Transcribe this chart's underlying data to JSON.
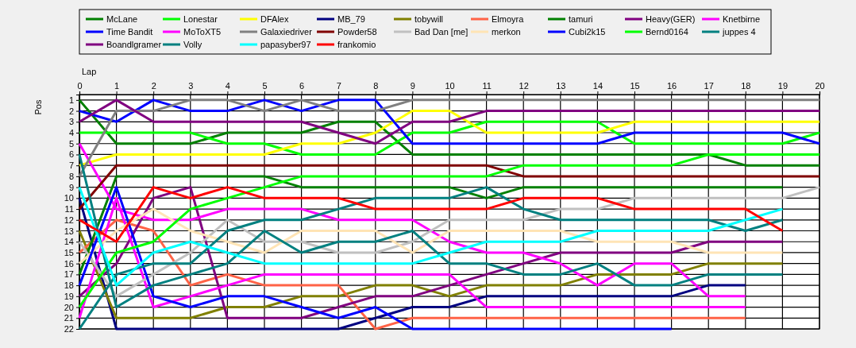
{
  "chart_data": {
    "type": "line",
    "xlabel": "Lap",
    "ylabel": "Pos",
    "x": [
      0,
      1,
      2,
      3,
      4,
      5,
      6,
      7,
      8,
      9,
      10,
      11,
      12,
      13,
      14,
      15,
      16,
      17,
      18,
      19,
      20
    ],
    "xlim": [
      0,
      20
    ],
    "xticks": [
      0,
      1,
      2,
      3,
      4,
      5,
      6,
      7,
      8,
      9,
      10,
      11,
      12,
      13,
      14,
      15,
      16,
      17,
      18,
      19,
      20
    ],
    "ylim": [
      22,
      0.5
    ],
    "yticks": [
      1,
      2,
      3,
      4,
      5,
      6,
      7,
      8,
      9,
      10,
      11,
      12,
      13,
      14,
      15,
      16,
      17,
      18,
      19,
      20,
      21,
      22
    ],
    "grid": true,
    "legend": "top",
    "series": [
      {
        "name": "McLane",
        "color": "#008000",
        "values": [
          1,
          5,
          5,
          5,
          4,
          4,
          4,
          3,
          3,
          6,
          6,
          6,
          6,
          6,
          6,
          6,
          6,
          6,
          7,
          7,
          7
        ]
      },
      {
        "name": "Lonestar",
        "color": "#00ff00",
        "values": [
          4,
          4,
          4,
          4,
          5,
          5,
          6,
          6,
          6,
          4,
          4,
          3,
          3,
          3,
          3,
          5,
          5,
          5,
          5,
          5,
          4
        ]
      },
      {
        "name": "DFAlex",
        "color": "#ffff00",
        "values": [
          7,
          6,
          6,
          6,
          6,
          6,
          5,
          5,
          4,
          2,
          2,
          4,
          4,
          4,
          4,
          3,
          3,
          3,
          3,
          3,
          3
        ]
      },
      {
        "name": "MB_79",
        "color": "#000080",
        "values": [
          10,
          22,
          22,
          22,
          22,
          22,
          22,
          22,
          21,
          20,
          20,
          19,
          19,
          19,
          19,
          19,
          19,
          18,
          18,
          null,
          null
        ]
      },
      {
        "name": "tobywill",
        "color": "#808000",
        "values": [
          13,
          21,
          21,
          21,
          20,
          20,
          19,
          19,
          18,
          18,
          19,
          18,
          18,
          18,
          17,
          17,
          17,
          16,
          16,
          16,
          null
        ]
      },
      {
        "name": "Elmoyra",
        "color": "#ff6347",
        "values": [
          15,
          12,
          13,
          18,
          17,
          18,
          18,
          18,
          22,
          21,
          21,
          21,
          21,
          21,
          21,
          21,
          21,
          21,
          21,
          null,
          null
        ]
      },
      {
        "name": "tamuri",
        "color": "#008000",
        "values": [
          17,
          8,
          8,
          8,
          8,
          8,
          9,
          9,
          9,
          9,
          9,
          10,
          9,
          9,
          9,
          9,
          9,
          9,
          9,
          9,
          null
        ]
      },
      {
        "name": "Heavy(GER)",
        "color": "#800080",
        "values": [
          19,
          16,
          10,
          9,
          21,
          21,
          21,
          20,
          19,
          19,
          18,
          17,
          16,
          15,
          15,
          15,
          15,
          14,
          14,
          14,
          null
        ]
      },
      {
        "name": "Knetbirne",
        "color": "#ff00ff",
        "values": [
          21,
          10,
          20,
          19,
          18,
          17,
          17,
          17,
          17,
          17,
          17,
          20,
          20,
          20,
          20,
          20,
          20,
          20,
          20,
          null,
          null
        ]
      },
      {
        "name": "Time Bandit",
        "color": "#0000ff",
        "values": [
          2,
          3,
          1,
          2,
          2,
          1,
          2,
          1,
          1,
          5,
          5,
          5,
          5,
          5,
          5,
          4,
          4,
          4,
          4,
          4,
          5
        ]
      },
      {
        "name": "MoToXT5",
        "color": "#ff00ff",
        "values": [
          5,
          11,
          12,
          12,
          11,
          11,
          11,
          12,
          12,
          12,
          14,
          15,
          15,
          16,
          18,
          16,
          16,
          19,
          19,
          null,
          null
        ]
      },
      {
        "name": "Galaxiedriver",
        "color": "#808080",
        "values": [
          8,
          2,
          2,
          1,
          1,
          2,
          1,
          2,
          2,
          1,
          1,
          1,
          1,
          1,
          1,
          1,
          1,
          1,
          1,
          1,
          1
        ]
      },
      {
        "name": "Powder58",
        "color": "#800000",
        "values": [
          11,
          7,
          7,
          7,
          7,
          7,
          7,
          7,
          7,
          7,
          7,
          7,
          8,
          8,
          8,
          8,
          8,
          8,
          8,
          8,
          8
        ]
      },
      {
        "name": "Bad Dan [me]",
        "color": "#c0c0c0",
        "values": [
          14,
          19,
          17,
          15,
          12,
          14,
          14,
          15,
          15,
          14,
          12,
          12,
          12,
          11,
          11,
          10,
          10,
          10,
          10,
          10,
          9
        ]
      },
      {
        "name": "merkon",
        "color": "#ffe4b5",
        "values": [
          16,
          13,
          11,
          13,
          14,
          15,
          13,
          13,
          13,
          15,
          13,
          13,
          13,
          13,
          14,
          14,
          14,
          15,
          15,
          15,
          null
        ]
      },
      {
        "name": "Cubi2k15",
        "color": "#0000ff",
        "values": [
          18,
          9,
          19,
          20,
          19,
          19,
          20,
          21,
          20,
          22,
          22,
          22,
          22,
          22,
          22,
          22,
          22,
          null,
          null,
          null,
          null
        ]
      },
      {
        "name": "Bernd0164",
        "color": "#00ff00",
        "values": [
          20,
          15,
          14,
          11,
          10,
          9,
          8,
          8,
          8,
          8,
          8,
          8,
          7,
          7,
          7,
          7,
          7,
          6,
          6,
          6,
          6
        ]
      },
      {
        "name": "juppes 4",
        "color": "#008080",
        "values": [
          22,
          17,
          16,
          16,
          13,
          12,
          12,
          11,
          10,
          10,
          10,
          9,
          11,
          12,
          12,
          12,
          12,
          12,
          13,
          12,
          null
        ]
      },
      {
        "name": "Boandlgramer",
        "color": "#800080",
        "values": [
          3,
          1,
          3,
          3,
          3,
          3,
          3,
          4,
          5,
          3,
          3,
          2,
          2,
          2,
          2,
          2,
          2,
          2,
          2,
          2,
          2
        ]
      },
      {
        "name": "Volly",
        "color": "#008080",
        "values": [
          6,
          20,
          18,
          17,
          16,
          13,
          15,
          14,
          14,
          13,
          16,
          16,
          17,
          17,
          16,
          18,
          18,
          17,
          17,
          17,
          null
        ]
      },
      {
        "name": "papasyber97",
        "color": "#00ffff",
        "values": [
          9,
          18,
          15,
          14,
          15,
          16,
          16,
          16,
          16,
          16,
          15,
          14,
          14,
          14,
          13,
          13,
          13,
          13,
          12,
          11,
          null
        ]
      },
      {
        "name": "frankomio",
        "color": "#ff0000",
        "values": [
          12,
          14,
          9,
          10,
          9,
          10,
          10,
          10,
          11,
          11,
          11,
          11,
          10,
          10,
          10,
          11,
          11,
          11,
          11,
          13,
          null
        ]
      }
    ]
  }
}
